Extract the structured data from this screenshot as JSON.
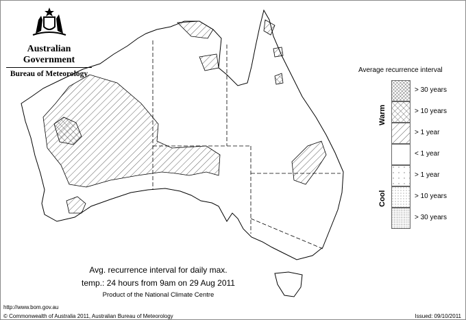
{
  "header": {
    "government": "Australian Government",
    "bureau": "Bureau of Meteorology"
  },
  "legend": {
    "title": "Average recurrence interval",
    "warm_label": "Warm",
    "cool_label": "Cool",
    "items": [
      {
        "label": "> 30 years",
        "category": "warm",
        "pattern": "dense-crosshatch"
      },
      {
        "label": "> 10 years",
        "category": "warm",
        "pattern": "crosshatch"
      },
      {
        "label": "> 1 year",
        "category": "warm",
        "pattern": "diagonal-hatch"
      },
      {
        "label": "< 1 year",
        "category": "neutral",
        "pattern": "none"
      },
      {
        "label": "> 1 year",
        "category": "cool",
        "pattern": "sparse-dots"
      },
      {
        "label": "> 10 years",
        "category": "cool",
        "pattern": "dots"
      },
      {
        "label": "> 30 years",
        "category": "cool",
        "pattern": "dense-dots"
      }
    ]
  },
  "caption": {
    "line1": "Avg. recurrence interval for daily max.",
    "line2": "temp.: 24 hours from 9am on 29 Aug 2011",
    "line3": "Product of the National Climate Centre"
  },
  "footer": {
    "url": "http://www.bom.gov.au",
    "copyright": "© Commonwealth of Australia 2011, Australian Bureau of Meteorology",
    "issued": "Issued: 09/10/2011"
  }
}
